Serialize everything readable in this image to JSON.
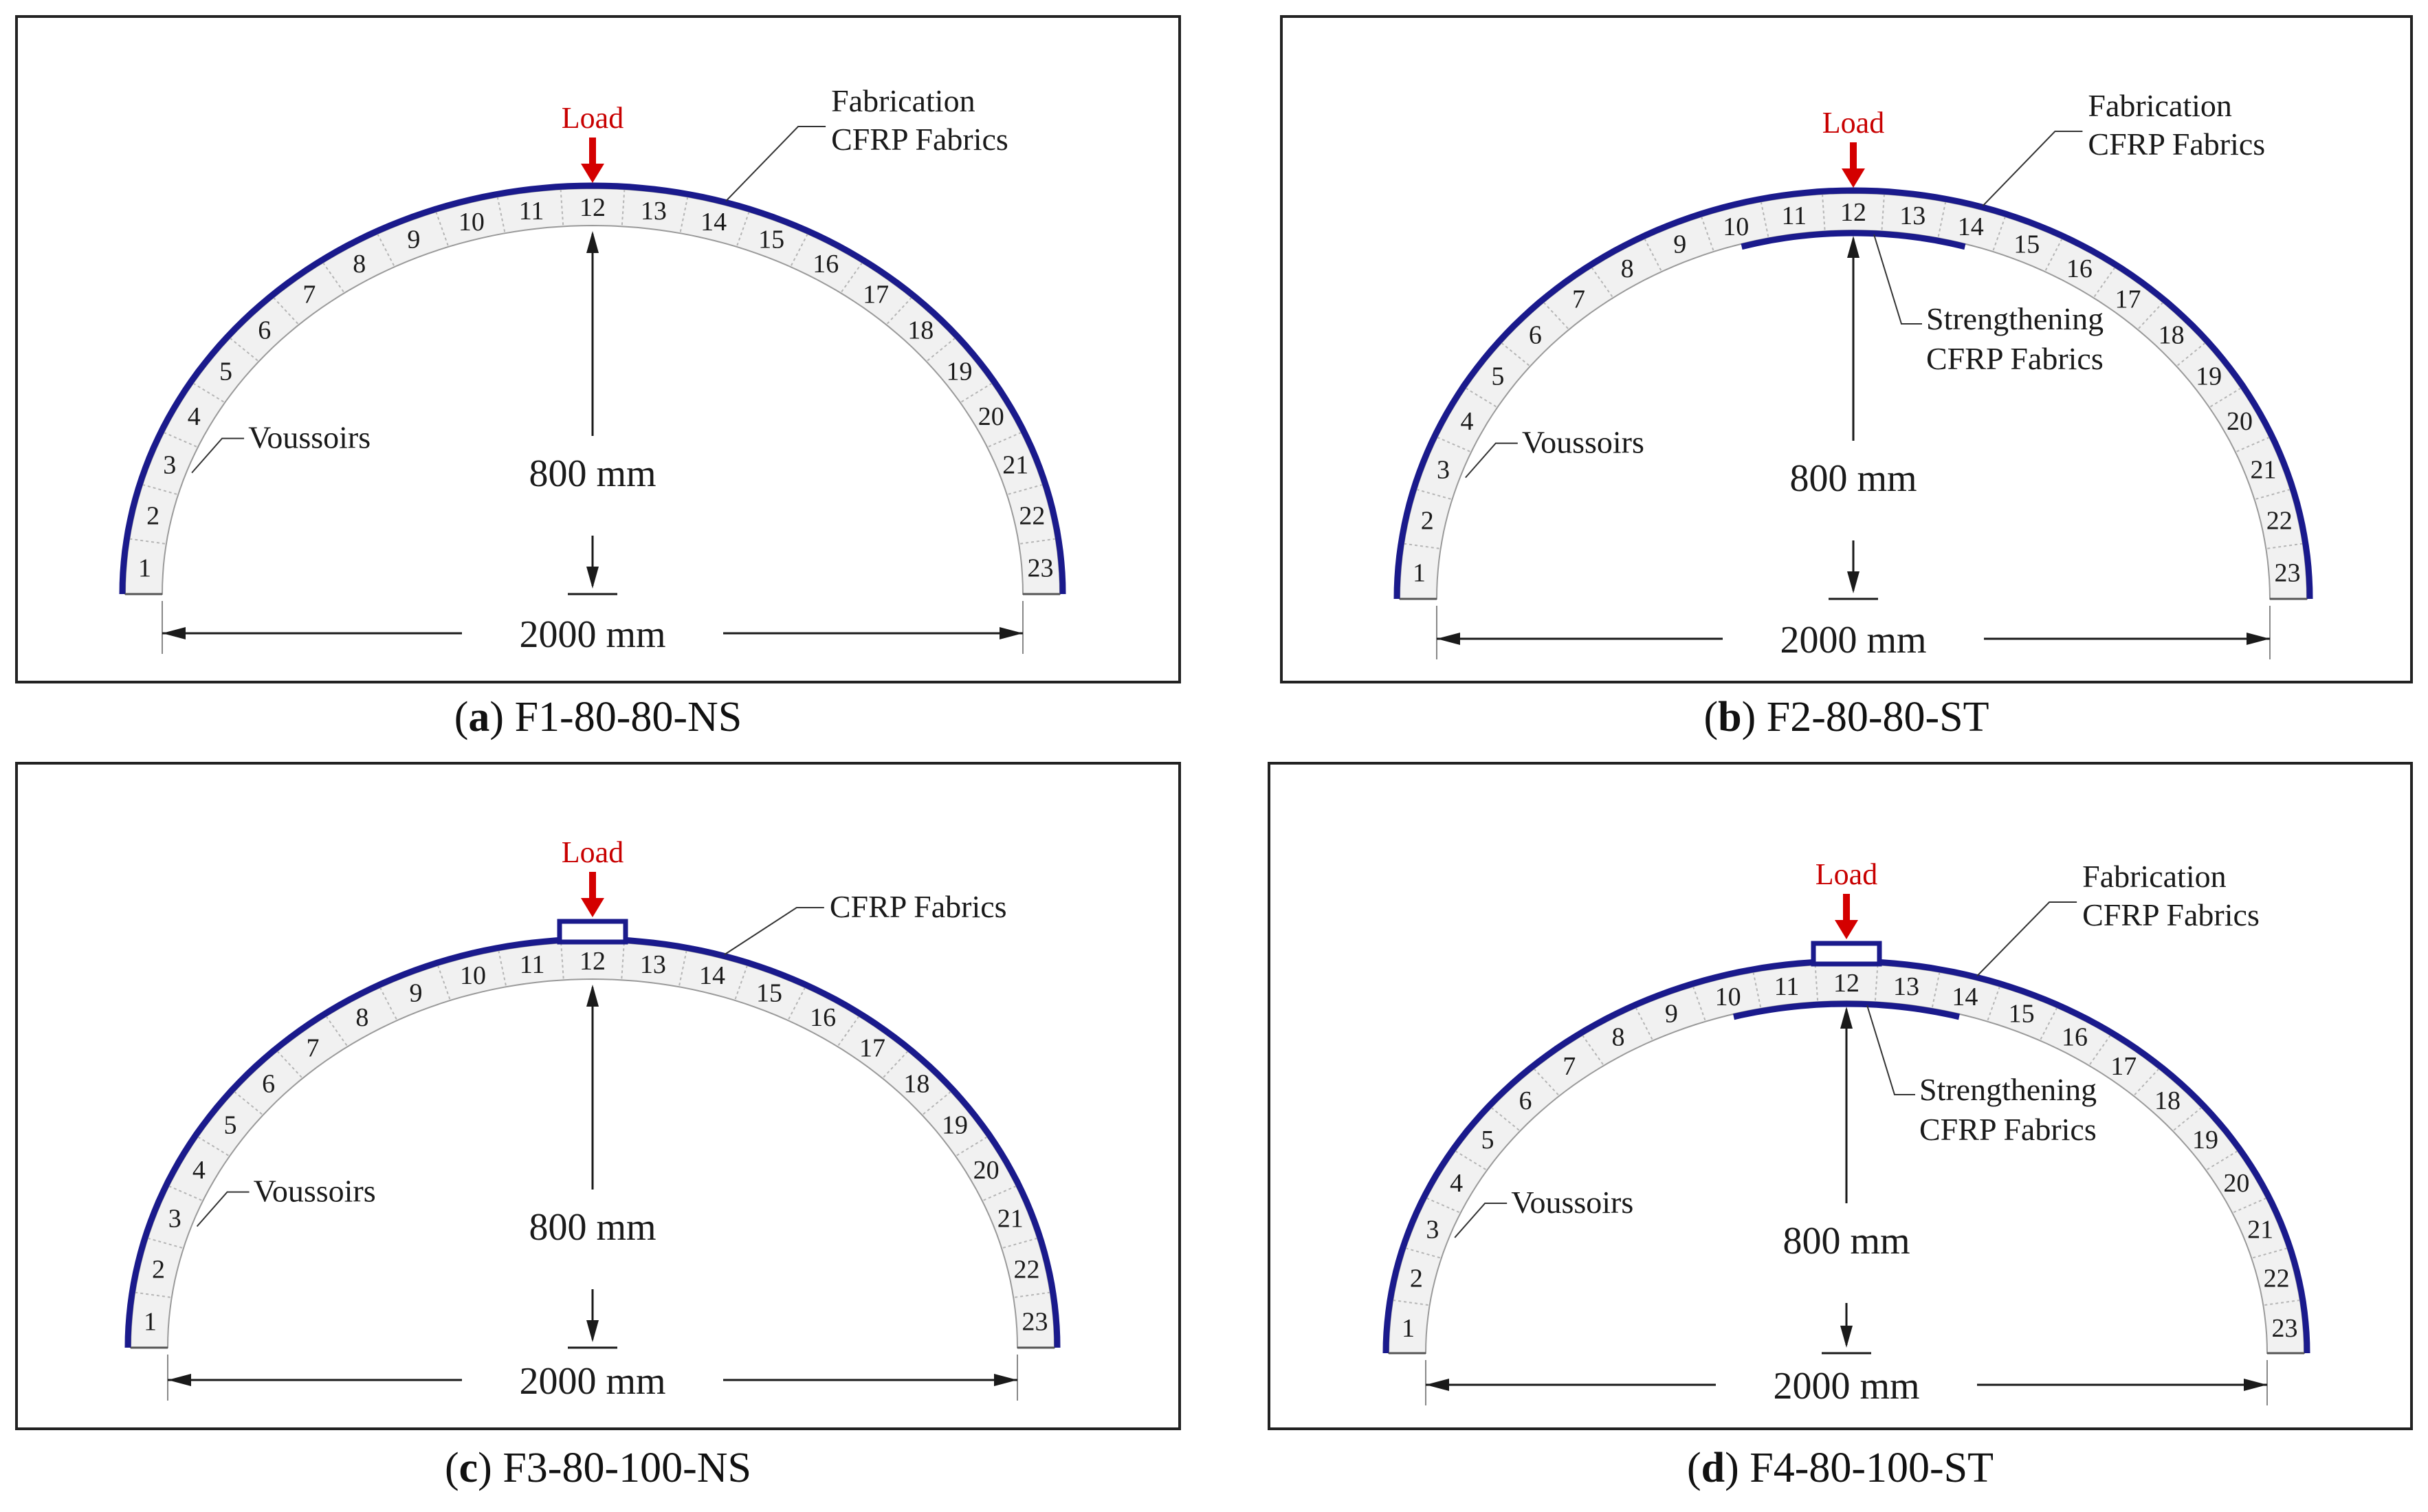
{
  "panels": [
    {
      "id": "a",
      "caption_letter": "a",
      "caption_name": "F1-80-80-NS",
      "load": "Load",
      "fab_line1": "Fabrication",
      "fab_line2": "CFRP Fabrics",
      "str_line1": "",
      "str_line2": "",
      "voussoirs": "Voussoirs",
      "rise": "800 mm",
      "span": "2000 mm",
      "strengthening": false,
      "loading_block": false
    },
    {
      "id": "b",
      "caption_letter": "b",
      "caption_name": "F2-80-80-ST",
      "load": "Load",
      "fab_line1": "Fabrication",
      "fab_line2": "CFRP Fabrics",
      "str_line1": "Strengthening",
      "str_line2": "CFRP Fabrics",
      "voussoirs": "Voussoirs",
      "rise": "800 mm",
      "span": "2000 mm",
      "strengthening": true,
      "loading_block": false
    },
    {
      "id": "c",
      "caption_letter": "c",
      "caption_name": "F3-80-100-NS",
      "load": "Load",
      "fab_line1": "CFRP Fabrics",
      "fab_line2": "",
      "str_line1": "",
      "str_line2": "",
      "voussoirs": "Voussoirs",
      "rise": "800 mm",
      "span": "2000 mm",
      "strengthening": false,
      "loading_block": true
    },
    {
      "id": "d",
      "caption_letter": "d",
      "caption_name": "F4-80-100-ST",
      "load": "Load",
      "fab_line1": "Fabrication",
      "fab_line2": "CFRP Fabrics",
      "str_line1": "Strengthening",
      "str_line2": "CFRP Fabrics",
      "voussoirs": "Voussoirs",
      "rise": "800 mm",
      "span": "2000 mm",
      "strengthening": true,
      "loading_block": true
    }
  ],
  "voussoir_numbers": [
    "1",
    "2",
    "3",
    "4",
    "5",
    "6",
    "7",
    "8",
    "9",
    "10",
    "11",
    "12",
    "13",
    "14",
    "15",
    "16",
    "17",
    "18",
    "19",
    "20",
    "21",
    "22",
    "23"
  ],
  "colors": {
    "cfrp": "#1a1a8c",
    "load_arrow": "#d40000",
    "ink": "#1a1a1a"
  }
}
